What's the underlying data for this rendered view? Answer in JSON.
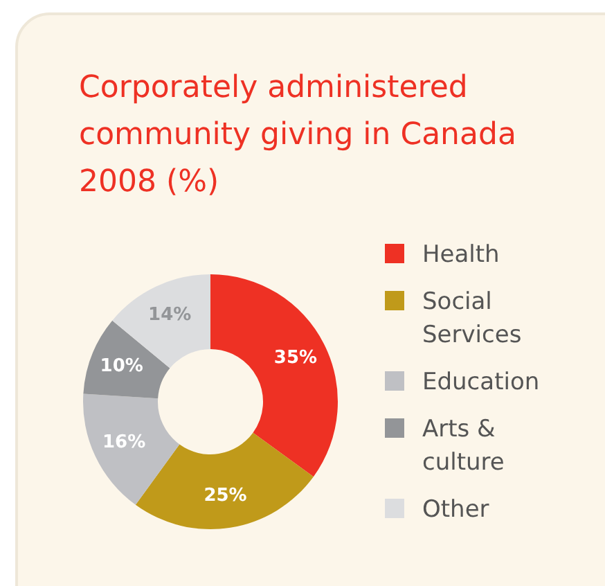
{
  "chart_data": {
    "type": "donut",
    "title": "Corporately administered community giving in Canada 2008 (%)",
    "categories": [
      "Health",
      "Social Services",
      "Education",
      "Arts & culture",
      "Other"
    ],
    "values": [
      35,
      25,
      16,
      10,
      14
    ],
    "colors": [
      "#ee3124",
      "#c09a1a",
      "#bfc0c4",
      "#939598",
      "#dcdddf"
    ],
    "value_labels": [
      "35%",
      "25%",
      "16%",
      "10%",
      "14%"
    ],
    "legend": "right"
  }
}
